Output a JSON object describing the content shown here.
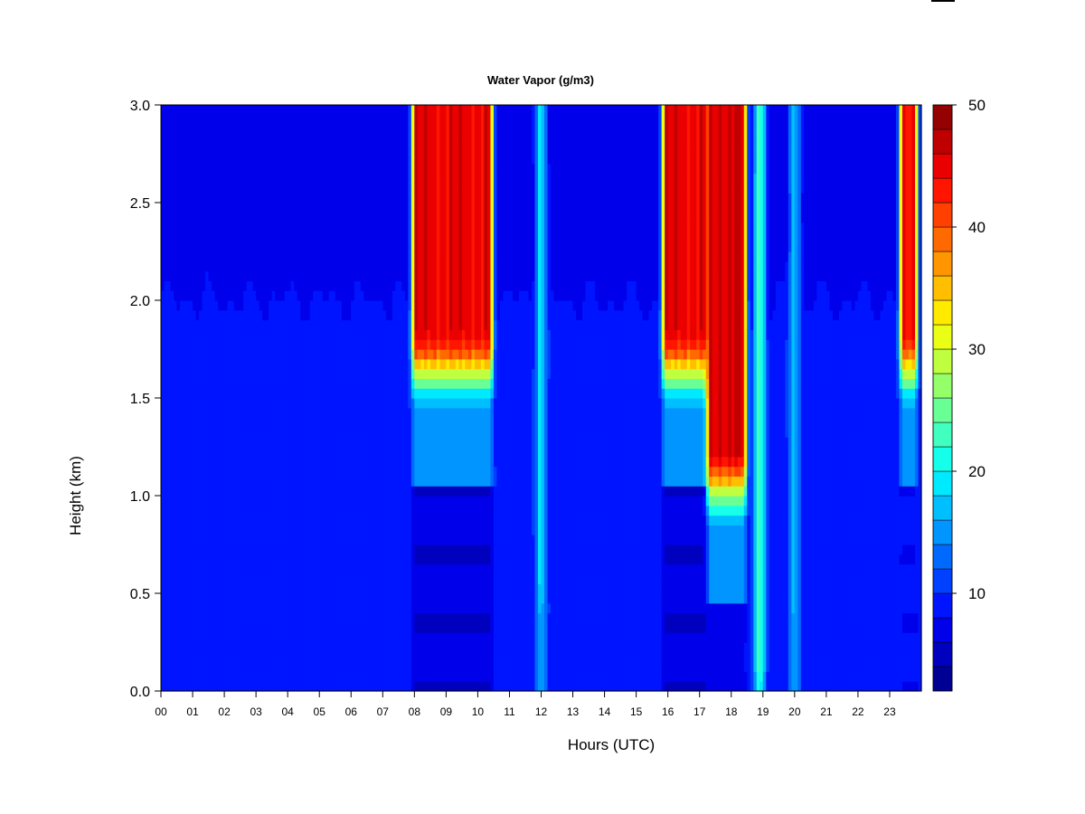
{
  "chart_data": {
    "type": "heatmap",
    "title": "Water Vapor (g/m3)",
    "xlabel": "Hours (UTC)",
    "ylabel": "Height (km)",
    "xlim": [
      0,
      24
    ],
    "ylim": [
      0.0,
      3.0
    ],
    "x_tick_labels": [
      "00",
      "01",
      "02",
      "03",
      "04",
      "05",
      "06",
      "07",
      "08",
      "09",
      "10",
      "11",
      "12",
      "13",
      "14",
      "15",
      "16",
      "17",
      "18",
      "19",
      "20",
      "21",
      "22",
      "23"
    ],
    "y_ticks": [
      0.0,
      0.5,
      1.0,
      1.5,
      2.0,
      2.5,
      3.0
    ],
    "y_tick_labels": [
      "0.0",
      "0.5",
      "1.0",
      "1.5",
      "2.0",
      "2.5",
      "3.0"
    ],
    "colorbar": {
      "range": [
        2,
        50
      ],
      "levels": 24,
      "ticks": [
        10,
        20,
        30,
        40,
        50
      ],
      "tick_labels": [
        "10",
        "20",
        "30",
        "40",
        "50"
      ]
    },
    "background_values": {
      "baseline_g_m3": 9,
      "upper_layer_g_m3": 7,
      "upper_layer_bottom_km": 2.0
    },
    "features": [
      {
        "name": "morning moist plume",
        "start_hour": 8.0,
        "end_hour": 10.4,
        "peak_g_m3": 45,
        "moist_base_km": 1.65,
        "dry_core_g_m3": 5
      },
      {
        "name": "afternoon moist plume A",
        "start_hour": 15.9,
        "end_hour": 17.2,
        "peak_g_m3": 45,
        "moist_base_km": 1.65,
        "dry_core_g_m3": 5
      },
      {
        "name": "afternoon moist plume B",
        "start_hour": 17.3,
        "end_hour": 18.4,
        "peak_g_m3": 46,
        "moist_base_km": 1.05,
        "dry_core_g_m3": 6
      },
      {
        "name": "narrow moist streak",
        "start_hour": 18.8,
        "end_hour": 19.0,
        "peak_g_m3": 22,
        "moist_base_km": 0.0,
        "dry_core_g_m3": 9
      },
      {
        "name": "late evening moist plume",
        "start_hour": 23.4,
        "end_hour": 23.8,
        "peak_g_m3": 44,
        "moist_base_km": 1.65,
        "dry_core_g_m3": 7
      },
      {
        "name": "midday moist column",
        "start_hour": 11.9,
        "end_hour": 12.1,
        "peak_g_m3": 17,
        "moist_base_km": 0.4,
        "dry_core_g_m3": 9
      },
      {
        "name": "evening moist column",
        "start_hour": 19.9,
        "end_hour": 20.1,
        "peak_g_m3": 16,
        "moist_base_km": 0.4,
        "dry_core_g_m3": 9
      }
    ]
  }
}
